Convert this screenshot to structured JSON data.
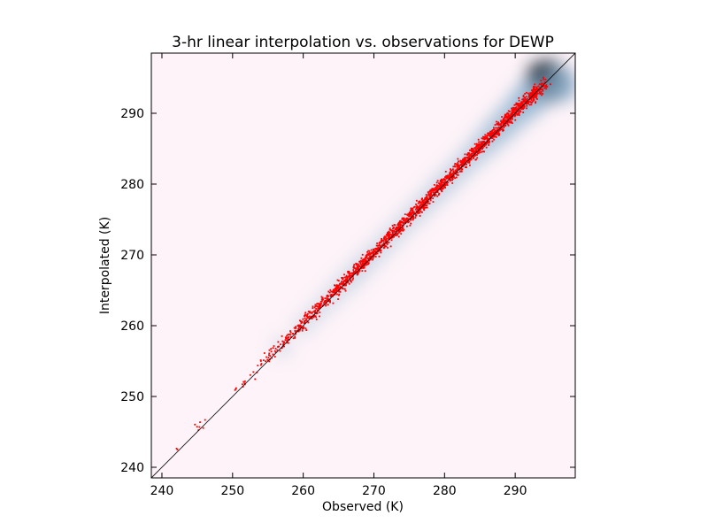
{
  "chart_data": {
    "type": "scatter",
    "title": "3-hr linear interpolation vs. observations for DEWP",
    "xlabel": "Observed (K)",
    "ylabel": "Interpolated (K)",
    "xlim": [
      238.5,
      298.5
    ],
    "ylim": [
      238.5,
      298.5
    ],
    "xticks": [
      "240",
      "250",
      "260",
      "270",
      "280",
      "290"
    ],
    "yticks": [
      "240",
      "250",
      "260",
      "270",
      "280",
      "290"
    ],
    "grid": false,
    "legend": "none",
    "reference_line": {
      "from": [
        238.5,
        238.5
      ],
      "to": [
        298.5,
        298.5
      ],
      "color": "#000000"
    },
    "points_color": "#ff0000",
    "density_colors": {
      "low": "#fdf3f8",
      "mid": "#8fb3d0",
      "high": "#1f2a38"
    },
    "point_clusters": [
      {
        "x": 241.5,
        "y": 242.0,
        "n": 2
      },
      {
        "x": 244.5,
        "y": 245.0,
        "n": 4
      },
      {
        "x": 246.0,
        "y": 246.5,
        "n": 3
      },
      {
        "x": 249.5,
        "y": 250.5,
        "n": 3
      },
      {
        "x": 252.0,
        "y": 252.5,
        "n": 8
      },
      {
        "x": 254.0,
        "y": 254.5,
        "n": 14
      },
      {
        "x": 256.0,
        "y": 256.5,
        "n": 25
      },
      {
        "x": 258.0,
        "y": 258.3,
        "n": 40
      },
      {
        "x": 260.0,
        "y": 260.3,
        "n": 60
      },
      {
        "x": 262.0,
        "y": 262.3,
        "n": 70
      },
      {
        "x": 264.0,
        "y": 264.3,
        "n": 80
      },
      {
        "x": 266.0,
        "y": 266.3,
        "n": 95
      },
      {
        "x": 268.0,
        "y": 268.3,
        "n": 100
      },
      {
        "x": 270.0,
        "y": 270.3,
        "n": 110
      },
      {
        "x": 272.0,
        "y": 272.3,
        "n": 110
      },
      {
        "x": 274.0,
        "y": 274.3,
        "n": 110
      },
      {
        "x": 276.0,
        "y": 276.3,
        "n": 115
      },
      {
        "x": 278.0,
        "y": 278.3,
        "n": 120
      },
      {
        "x": 280.0,
        "y": 280.3,
        "n": 125
      },
      {
        "x": 282.0,
        "y": 282.3,
        "n": 130
      },
      {
        "x": 284.0,
        "y": 284.3,
        "n": 135
      },
      {
        "x": 286.0,
        "y": 286.3,
        "n": 140
      },
      {
        "x": 288.0,
        "y": 288.3,
        "n": 145
      },
      {
        "x": 290.0,
        "y": 290.3,
        "n": 150
      },
      {
        "x": 292.0,
        "y": 292.2,
        "n": 140
      },
      {
        "x": 293.5,
        "y": 293.5,
        "n": 80
      }
    ],
    "density_blobs": [
      {
        "x": 294.5,
        "y": 294.5,
        "level": 1.0
      },
      {
        "x": 296.5,
        "y": 294.0,
        "level": 0.7
      },
      {
        "x": 292.0,
        "y": 292.0,
        "level": 0.75
      },
      {
        "x": 290.0,
        "y": 290.0,
        "level": 0.6
      },
      {
        "x": 288.0,
        "y": 288.0,
        "level": 0.55
      },
      {
        "x": 286.0,
        "y": 286.0,
        "level": 0.45
      },
      {
        "x": 284.0,
        "y": 284.0,
        "level": 0.35
      },
      {
        "x": 282.0,
        "y": 282.0,
        "level": 0.3
      },
      {
        "x": 280.0,
        "y": 280.0,
        "level": 0.3
      },
      {
        "x": 278.0,
        "y": 278.0,
        "level": 0.25
      },
      {
        "x": 276.0,
        "y": 276.0,
        "level": 0.22
      },
      {
        "x": 274.0,
        "y": 274.0,
        "level": 0.2
      },
      {
        "x": 272.0,
        "y": 272.0,
        "level": 0.2
      },
      {
        "x": 270.0,
        "y": 270.0,
        "level": 0.2
      },
      {
        "x": 268.0,
        "y": 268.0,
        "level": 0.22
      },
      {
        "x": 266.0,
        "y": 266.0,
        "level": 0.2
      },
      {
        "x": 264.0,
        "y": 264.0,
        "level": 0.15
      },
      {
        "x": 262.0,
        "y": 262.0,
        "level": 0.12
      },
      {
        "x": 260.0,
        "y": 260.0,
        "level": 0.1
      },
      {
        "x": 257.0,
        "y": 257.0,
        "level": 0.08
      }
    ]
  }
}
